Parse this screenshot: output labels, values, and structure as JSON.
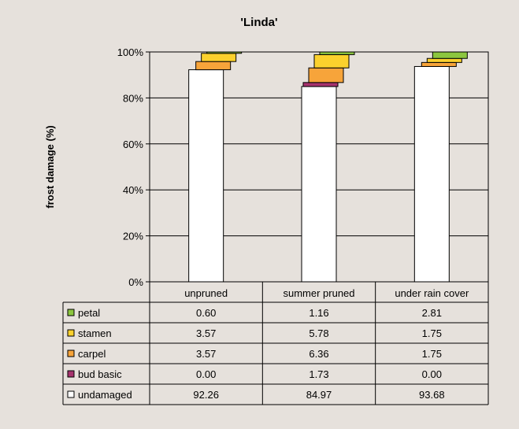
{
  "chart_data": {
    "type": "stacked-bar-with-data-table",
    "title": "'Linda'",
    "ylabel": "frost damage (%)",
    "xlabel": "",
    "ylim": [
      0,
      100
    ],
    "yticks": [
      "0%",
      "20%",
      "40%",
      "60%",
      "80%",
      "100%"
    ],
    "grid": true,
    "categories": [
      "unpruned",
      "summer pruned",
      "under rain cover"
    ],
    "series": [
      {
        "name": "undamaged",
        "color": "#ffffff",
        "values": [
          92.26,
          84.97,
          93.68
        ]
      },
      {
        "name": "bud basic",
        "color": "#a6336e",
        "values": [
          0.0,
          1.73,
          0.0
        ]
      },
      {
        "name": "carpel",
        "color": "#f7a43a",
        "values": [
          3.57,
          6.36,
          1.75
        ]
      },
      {
        "name": "stamen",
        "color": "#fbd12d",
        "values": [
          3.57,
          5.78,
          1.75
        ]
      },
      {
        "name": "petal",
        "color": "#8cc63f",
        "values": [
          0.6,
          1.16,
          2.81
        ]
      }
    ],
    "table_rows": [
      {
        "name": "petal",
        "values": [
          "0.60",
          "1.16",
          "2.81"
        ]
      },
      {
        "name": "stamen",
        "values": [
          "3.57",
          "5.78",
          "1.75"
        ]
      },
      {
        "name": "carpel",
        "values": [
          "3.57",
          "6.36",
          "1.75"
        ]
      },
      {
        "name": "bud basic",
        "values": [
          "0.00",
          "1.73",
          "0.00"
        ]
      },
      {
        "name": "undamaged",
        "values": [
          "92.26",
          "84.97",
          "93.68"
        ]
      }
    ]
  }
}
